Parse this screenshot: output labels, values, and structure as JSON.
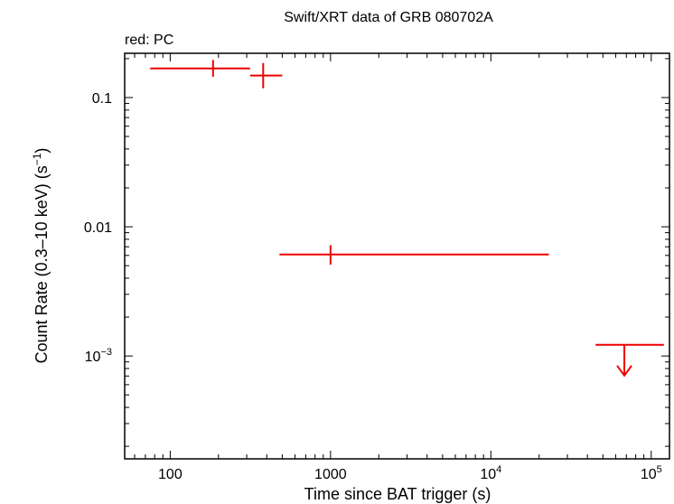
{
  "chart_data": {
    "type": "scatter",
    "title": "Swift/XRT data of GRB 080702A",
    "subtitle": "red: PC",
    "xlabel": "Time since BAT trigger (s)",
    "ylabel_parts": {
      "main": "Count Rate (0.3–10 keV) (s",
      "exp": "−1",
      "close": ")"
    },
    "x_scale": "log",
    "y_scale": "log",
    "xlim": [
      52,
      130000
    ],
    "ylim": [
      0.00016,
      0.22
    ],
    "x_ticks": [
      {
        "value": 100,
        "base": "100",
        "exp": ""
      },
      {
        "value": 1000,
        "base": "1000",
        "exp": ""
      },
      {
        "value": 10000,
        "base": "10",
        "exp": "4"
      },
      {
        "value": 100000,
        "base": "10",
        "exp": "5"
      }
    ],
    "y_ticks": [
      {
        "value": 0.1,
        "base": "0.1",
        "exp": ""
      },
      {
        "value": 0.01,
        "base": "0.01",
        "exp": ""
      },
      {
        "value": 0.001,
        "base": "10",
        "exp": "−3"
      }
    ],
    "series_color": "#ee0000",
    "series": [
      {
        "points": [
          {
            "x": 185,
            "y": 0.168,
            "xmin": 75,
            "xmax": 315,
            "ymin": 0.145,
            "ymax": 0.195
          },
          {
            "x": 380,
            "y": 0.148,
            "xmin": 315,
            "xmax": 500,
            "ymin": 0.118,
            "ymax": 0.185
          },
          {
            "x": 1000,
            "y": 0.0061,
            "xmin": 480,
            "xmax": 23000,
            "ymin": 0.0051,
            "ymax": 0.0072
          }
        ],
        "upper_limits": [
          {
            "x": 68000,
            "y": 0.00122,
            "xmin": 45000,
            "xmax": 120000
          }
        ]
      }
    ]
  }
}
